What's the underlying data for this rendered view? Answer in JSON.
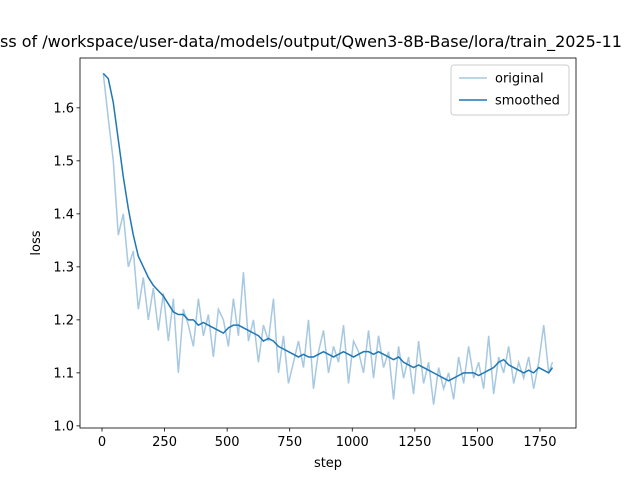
{
  "chart_data": {
    "type": "line",
    "title": "ss of /workspace/user-data/models/output/Qwen3-8B-Base/lora/train_2025-11",
    "x_label": "step",
    "y_label": "loss",
    "x": [
      5,
      25,
      45,
      65,
      85,
      105,
      125,
      145,
      165,
      185,
      205,
      225,
      245,
      265,
      285,
      305,
      325,
      345,
      365,
      385,
      405,
      425,
      445,
      465,
      485,
      505,
      525,
      545,
      565,
      585,
      605,
      625,
      645,
      665,
      685,
      705,
      725,
      745,
      765,
      785,
      805,
      825,
      845,
      865,
      885,
      905,
      925,
      945,
      965,
      985,
      1005,
      1025,
      1045,
      1065,
      1085,
      1105,
      1125,
      1145,
      1165,
      1185,
      1205,
      1225,
      1245,
      1265,
      1285,
      1305,
      1325,
      1345,
      1365,
      1385,
      1405,
      1425,
      1445,
      1465,
      1485,
      1505,
      1525,
      1545,
      1565,
      1585,
      1605,
      1625,
      1645,
      1665,
      1685,
      1705,
      1725,
      1745,
      1765,
      1785,
      1800
    ],
    "series": [
      {
        "name": "original",
        "color": "#a6c8e1",
        "values": [
          1.665,
          1.58,
          1.5,
          1.36,
          1.4,
          1.3,
          1.33,
          1.22,
          1.28,
          1.2,
          1.26,
          1.18,
          1.25,
          1.16,
          1.24,
          1.1,
          1.22,
          1.19,
          1.15,
          1.24,
          1.17,
          1.21,
          1.13,
          1.22,
          1.2,
          1.15,
          1.24,
          1.17,
          1.29,
          1.16,
          1.2,
          1.12,
          1.19,
          1.16,
          1.24,
          1.1,
          1.17,
          1.08,
          1.12,
          1.16,
          1.11,
          1.2,
          1.07,
          1.14,
          1.18,
          1.1,
          1.15,
          1.12,
          1.19,
          1.08,
          1.16,
          1.14,
          1.1,
          1.18,
          1.09,
          1.17,
          1.11,
          1.14,
          1.05,
          1.15,
          1.09,
          1.13,
          1.06,
          1.16,
          1.08,
          1.12,
          1.04,
          1.11,
          1.07,
          1.1,
          1.05,
          1.13,
          1.08,
          1.15,
          1.09,
          1.12,
          1.07,
          1.17,
          1.06,
          1.13,
          1.1,
          1.15,
          1.08,
          1.12,
          1.09,
          1.13,
          1.07,
          1.12,
          1.19,
          1.1,
          1.12
        ]
      },
      {
        "name": "smoothed",
        "color": "#1f77b4",
        "values": [
          1.665,
          1.655,
          1.61,
          1.54,
          1.47,
          1.41,
          1.36,
          1.32,
          1.3,
          1.28,
          1.265,
          1.255,
          1.245,
          1.23,
          1.215,
          1.21,
          1.21,
          1.2,
          1.2,
          1.19,
          1.195,
          1.19,
          1.185,
          1.18,
          1.175,
          1.185,
          1.19,
          1.19,
          1.185,
          1.18,
          1.175,
          1.17,
          1.16,
          1.165,
          1.16,
          1.15,
          1.145,
          1.14,
          1.135,
          1.13,
          1.135,
          1.13,
          1.13,
          1.135,
          1.14,
          1.135,
          1.13,
          1.135,
          1.14,
          1.135,
          1.13,
          1.135,
          1.14,
          1.14,
          1.135,
          1.14,
          1.135,
          1.13,
          1.125,
          1.13,
          1.12,
          1.115,
          1.11,
          1.115,
          1.11,
          1.105,
          1.1,
          1.095,
          1.09,
          1.085,
          1.09,
          1.095,
          1.1,
          1.1,
          1.1,
          1.095,
          1.1,
          1.105,
          1.11,
          1.12,
          1.125,
          1.115,
          1.11,
          1.105,
          1.1,
          1.105,
          1.1,
          1.11,
          1.105,
          1.1,
          1.11
        ]
      }
    ],
    "xlim": [
      -88,
      1894
    ],
    "ylim": [
      0.996,
      1.694
    ],
    "xticks": [
      0,
      250,
      500,
      750,
      1000,
      1250,
      1500,
      1750
    ],
    "yticks": [
      {
        "value": 1,
        "label": "1.0"
      },
      1.1,
      1.2,
      1.3,
      1.4,
      1.5,
      1.6
    ],
    "legend": "upper right"
  }
}
